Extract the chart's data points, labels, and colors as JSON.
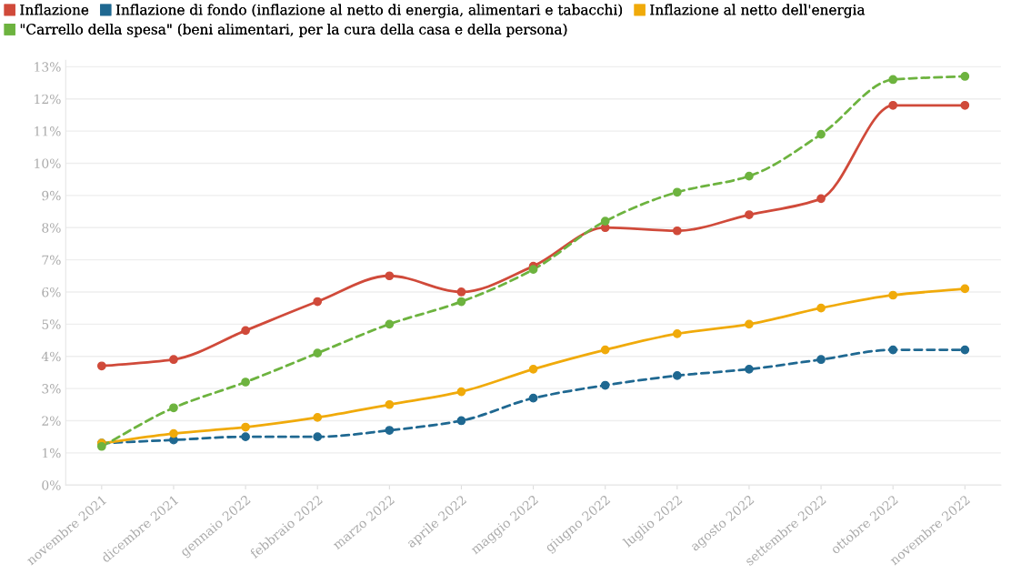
{
  "chart_data": {
    "type": "line",
    "categories": [
      "novembre 2021",
      "dicembre 2021",
      "gennaio 2022",
      "febbraio 2022",
      "marzo 2022",
      "aprile 2022",
      "maggio 2022",
      "giugno 2022",
      "luglio 2022",
      "agosto 2022",
      "settembre 2022",
      "ottobre 2022",
      "novembre 2022"
    ],
    "series": [
      {
        "name": "Inflazione",
        "color": "#d04a3a",
        "line_style": "solid",
        "values": [
          3.7,
          3.9,
          4.8,
          5.7,
          6.5,
          6.0,
          6.8,
          8.0,
          7.9,
          8.4,
          8.9,
          11.8,
          11.8
        ]
      },
      {
        "name": "Inflazione di fondo (inflazione al netto di energia, alimentari e tabacchi)",
        "color": "#1f6891",
        "line_style": "dashed",
        "values": [
          1.3,
          1.4,
          1.5,
          1.5,
          1.7,
          2.0,
          2.7,
          3.1,
          3.4,
          3.6,
          3.9,
          4.2,
          4.2
        ]
      },
      {
        "name": "Inflazione al netto dell'energia",
        "color": "#f0aa0a",
        "line_style": "solid",
        "values": [
          1.3,
          1.6,
          1.8,
          2.1,
          2.5,
          2.9,
          3.6,
          4.2,
          4.7,
          5.0,
          5.5,
          5.9,
          6.1
        ]
      },
      {
        "name": "\"Carrello della spesa\" (beni alimentari, per la cura della casa e della persona)",
        "color": "#6db33f",
        "line_style": "dashed",
        "values": [
          1.2,
          2.4,
          3.2,
          4.1,
          5.0,
          5.7,
          6.7,
          8.2,
          9.1,
          9.6,
          10.9,
          12.6,
          12.7
        ]
      }
    ],
    "ylim": [
      0,
      13.2
    ],
    "yticks": [
      {
        "value": 0,
        "label": "0%"
      },
      {
        "value": 1,
        "label": "1%"
      },
      {
        "value": 2,
        "label": "2%"
      },
      {
        "value": 3,
        "label": "3%"
      },
      {
        "value": 4,
        "label": "4%"
      },
      {
        "value": 5,
        "label": "5%"
      },
      {
        "value": 6,
        "label": "6%"
      },
      {
        "value": 7,
        "label": "7%"
      },
      {
        "value": 8,
        "label": "8%"
      },
      {
        "value": 9,
        "label": "9%"
      },
      {
        "value": 10,
        "label": "10%"
      },
      {
        "value": 11,
        "label": "11%"
      },
      {
        "value": 12,
        "label": "12%"
      },
      {
        "value": 13,
        "label": "13%"
      }
    ],
    "grid": "y",
    "legend": "top",
    "marker": "circle"
  }
}
